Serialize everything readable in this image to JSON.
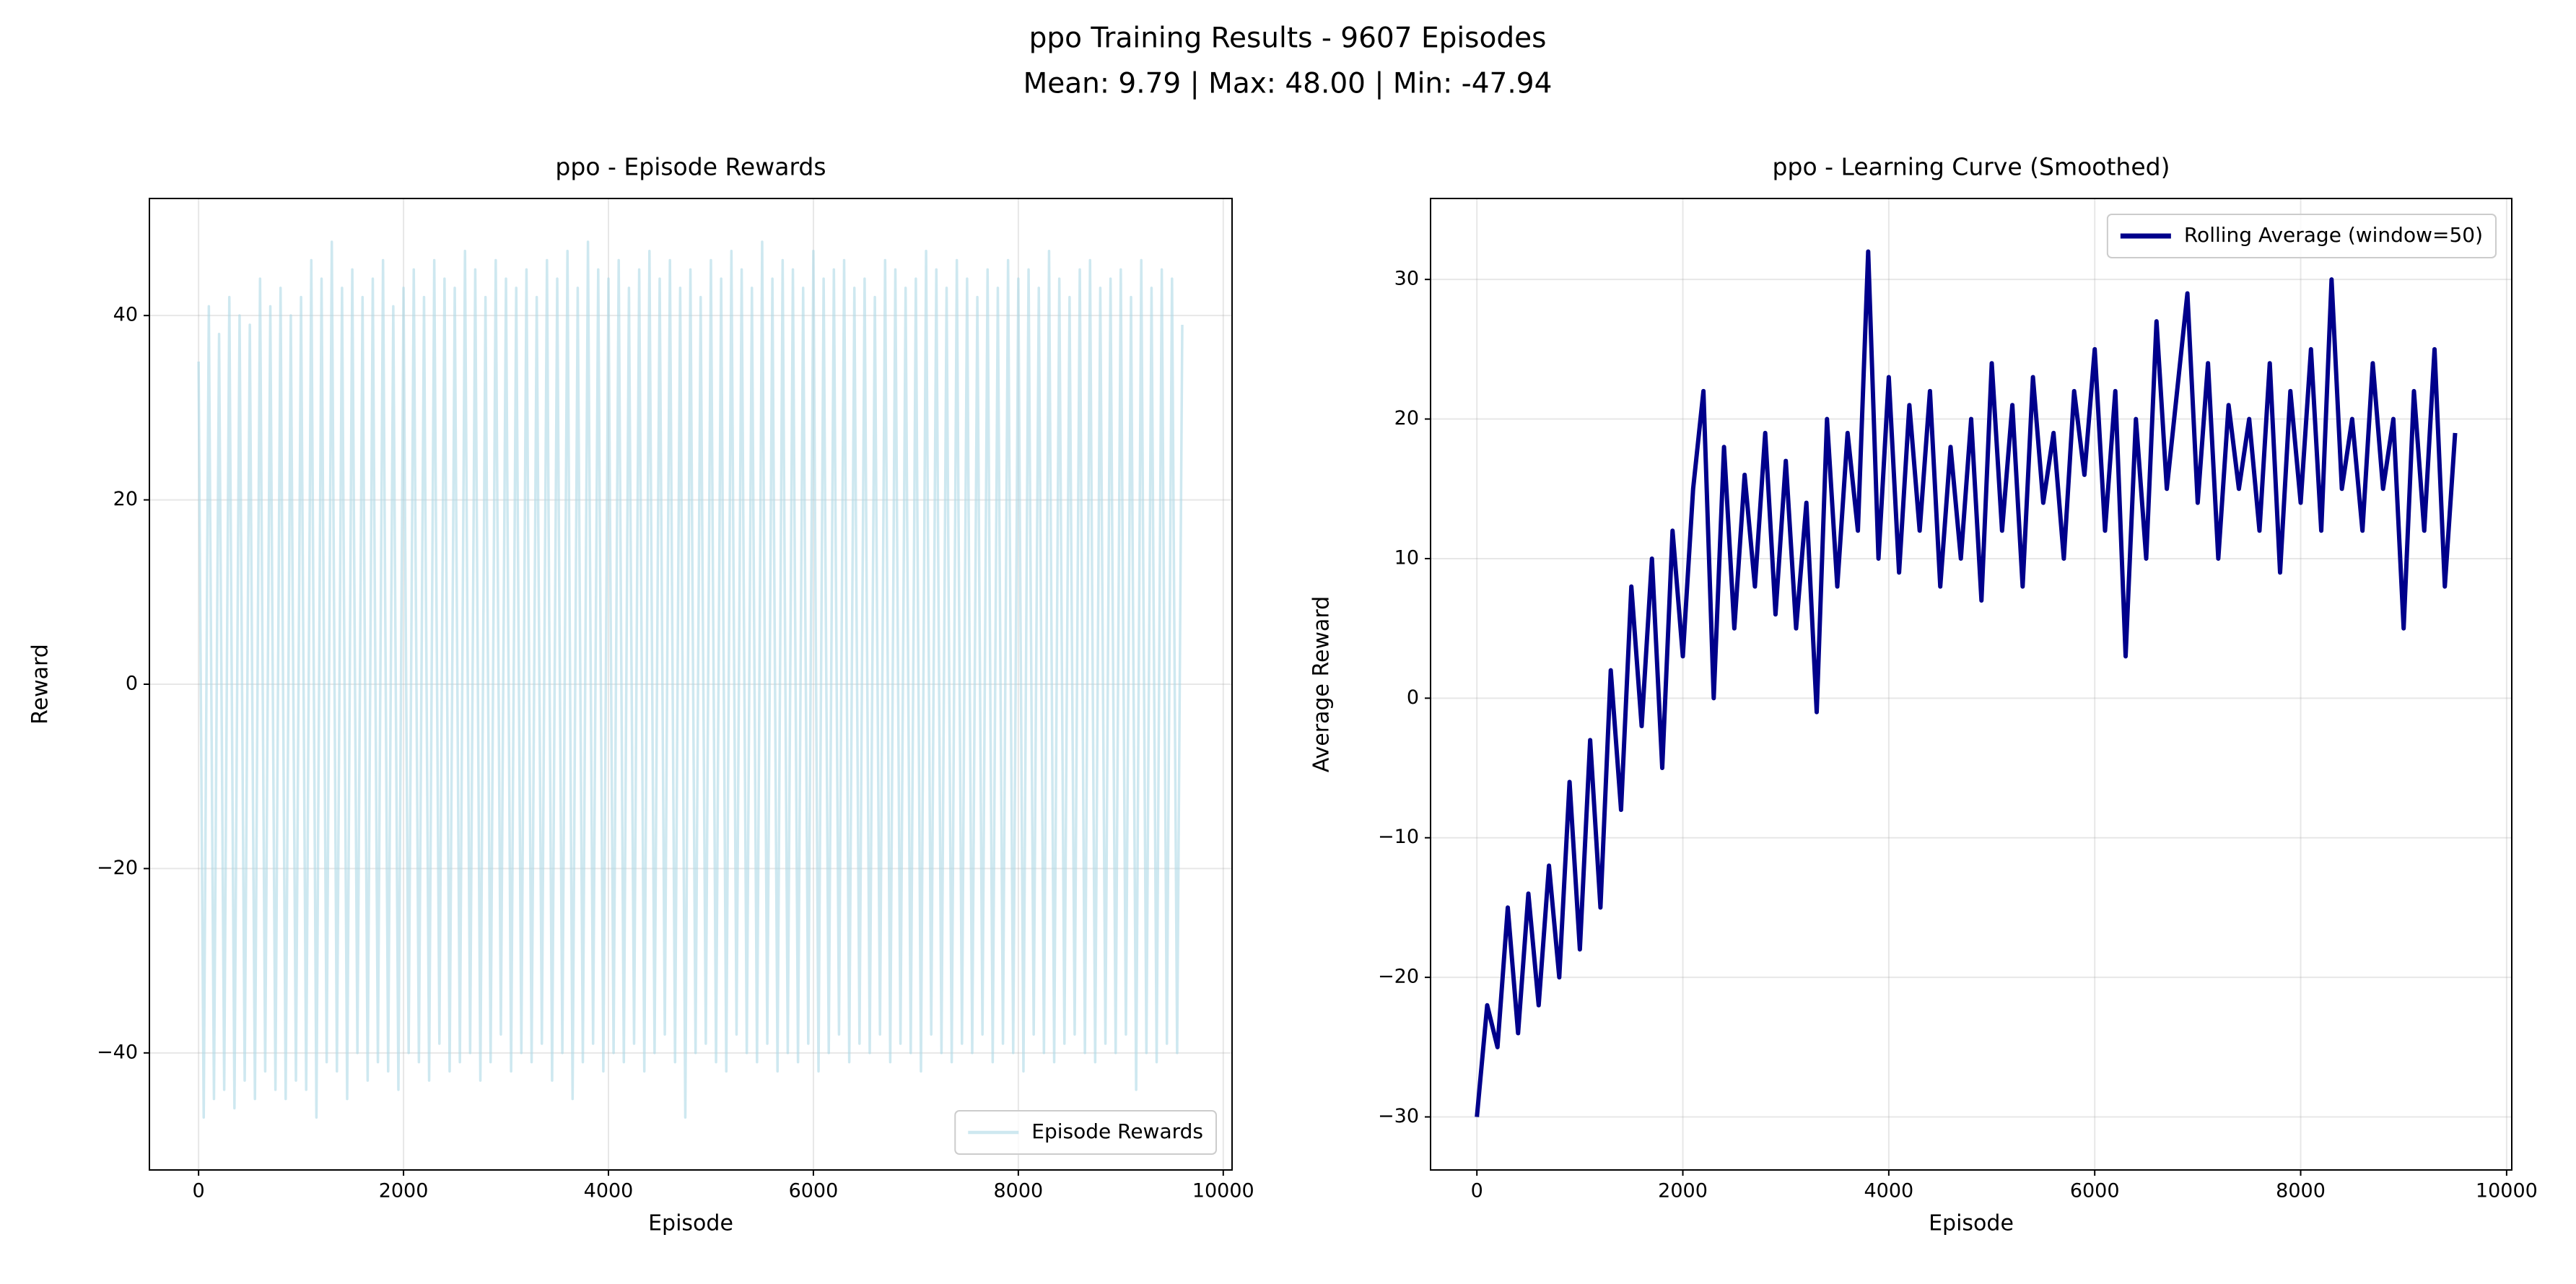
{
  "title": "ppo Training Results - 9607 Episodes",
  "subtitle": "Mean: 9.79 | Max: 48.00 | Min: -47.94",
  "chart_data": [
    {
      "type": "line",
      "title": "ppo - Episode Rewards",
      "xlabel": "Episode",
      "ylabel": "Reward",
      "x": [
        0,
        50,
        100,
        150,
        200,
        250,
        300,
        350,
        400,
        450,
        500,
        550,
        600,
        650,
        700,
        750,
        800,
        850,
        900,
        950,
        1000,
        1050,
        1100,
        1150,
        1200,
        1250,
        1300,
        1350,
        1400,
        1450,
        1500,
        1550,
        1600,
        1650,
        1700,
        1750,
        1800,
        1850,
        1900,
        1950,
        2000,
        2050,
        2100,
        2150,
        2200,
        2250,
        2300,
        2350,
        2400,
        2450,
        2500,
        2550,
        2600,
        2650,
        2700,
        2750,
        2800,
        2850,
        2900,
        2950,
        3000,
        3050,
        3100,
        3150,
        3200,
        3250,
        3300,
        3350,
        3400,
        3450,
        3500,
        3550,
        3600,
        3650,
        3700,
        3750,
        3800,
        3850,
        3900,
        3950,
        4000,
        4050,
        4100,
        4150,
        4200,
        4250,
        4300,
        4350,
        4400,
        4450,
        4500,
        4550,
        4600,
        4650,
        4700,
        4750,
        4800,
        4850,
        4900,
        4950,
        5000,
        5050,
        5100,
        5150,
        5200,
        5250,
        5300,
        5350,
        5400,
        5450,
        5500,
        5550,
        5600,
        5650,
        5700,
        5750,
        5800,
        5850,
        5900,
        5950,
        6000,
        6050,
        6100,
        6150,
        6200,
        6250,
        6300,
        6350,
        6400,
        6450,
        6500,
        6550,
        6600,
        6650,
        6700,
        6750,
        6800,
        6850,
        6900,
        6950,
        7000,
        7050,
        7100,
        7150,
        7200,
        7250,
        7300,
        7350,
        7400,
        7450,
        7500,
        7550,
        7600,
        7650,
        7700,
        7750,
        7800,
        7850,
        7900,
        7950,
        8000,
        8050,
        8100,
        8150,
        8200,
        8250,
        8300,
        8350,
        8400,
        8450,
        8500,
        8550,
        8600,
        8650,
        8700,
        8750,
        8800,
        8850,
        8900,
        8950,
        9000,
        9050,
        9100,
        9150,
        9200,
        9250,
        9300,
        9350,
        9400,
        9450,
        9500,
        9550,
        9600
      ],
      "series": [
        {
          "name": "Episode Rewards",
          "color": "#add8e6",
          "values": [
            35,
            -47,
            41,
            -45,
            38,
            -44,
            42,
            -46,
            40,
            -43,
            39,
            -45,
            44,
            -42,
            41,
            -44,
            43,
            -45,
            40,
            -43,
            42,
            -44,
            46,
            -47,
            44,
            -41,
            48,
            -42,
            43,
            -45,
            45,
            -40,
            42,
            -43,
            44,
            -41,
            46,
            -42,
            41,
            -44,
            43,
            -40,
            45,
            -41,
            42,
            -43,
            46,
            -39,
            44,
            -42,
            43,
            -41,
            47,
            -40,
            45,
            -43,
            42,
            -41,
            46,
            -38,
            44,
            -42,
            43,
            -40,
            45,
            -41,
            42,
            -39,
            46,
            -43,
            44,
            -40,
            47,
            -45,
            43,
            -41,
            48,
            -39,
            45,
            -42,
            44,
            -40,
            46,
            -41,
            43,
            -39,
            45,
            -42,
            47,
            -40,
            44,
            -38,
            46,
            -41,
            43,
            -47,
            45,
            -40,
            42,
            -39,
            46,
            -41,
            44,
            -42,
            47,
            -38,
            45,
            -40,
            43,
            -41,
            48,
            -39,
            44,
            -42,
            46,
            -40,
            45,
            -41,
            43,
            -39,
            47,
            -42,
            44,
            -40,
            45,
            -38,
            46,
            -41,
            43,
            -39,
            44,
            -40,
            42,
            -38,
            46,
            -41,
            45,
            -39,
            43,
            -40,
            44,
            -42,
            47,
            -38,
            45,
            -40,
            43,
            -41,
            46,
            -39,
            44,
            -40,
            42,
            -38,
            45,
            -41,
            43,
            -39,
            46,
            -40,
            44,
            -42,
            45,
            -38,
            43,
            -40,
            47,
            -41,
            44,
            -39,
            42,
            -38,
            45,
            -40,
            46,
            -41,
            43,
            -39,
            44,
            -40,
            45,
            -38,
            42,
            -44,
            46,
            -40,
            43,
            -41,
            45,
            -39,
            44,
            -40,
            39
          ]
        }
      ],
      "xlim": [
        -480,
        10086
      ],
      "ylim": [
        -52.7,
        52.7
      ],
      "xticks": [
        0,
        2000,
        4000,
        6000,
        8000,
        10000
      ],
      "yticks": [
        {
          "value": -40,
          "label": "−40"
        },
        {
          "value": -20,
          "label": "−20"
        },
        0,
        20,
        40
      ],
      "grid": true,
      "legend": "lower right"
    },
    {
      "type": "line",
      "title": "ppo - Learning Curve (Smoothed)",
      "xlabel": "Episode",
      "ylabel": "Average Reward",
      "x": [
        0,
        100,
        200,
        300,
        400,
        500,
        600,
        700,
        800,
        900,
        1000,
        1100,
        1200,
        1300,
        1400,
        1500,
        1600,
        1700,
        1800,
        1900,
        2000,
        2100,
        2200,
        2300,
        2400,
        2500,
        2600,
        2700,
        2800,
        2900,
        3000,
        3100,
        3200,
        3300,
        3400,
        3500,
        3600,
        3700,
        3800,
        3900,
        4000,
        4100,
        4200,
        4300,
        4400,
        4500,
        4600,
        4700,
        4800,
        4900,
        5000,
        5100,
        5200,
        5300,
        5400,
        5500,
        5600,
        5700,
        5800,
        5900,
        6000,
        6100,
        6200,
        6300,
        6400,
        6500,
        6600,
        6700,
        6800,
        6900,
        7000,
        7100,
        7200,
        7300,
        7400,
        7500,
        7600,
        7700,
        7800,
        7900,
        8000,
        8100,
        8200,
        8300,
        8400,
        8500,
        8600,
        8700,
        8800,
        8900,
        9000,
        9100,
        9200,
        9300,
        9400,
        9500
      ],
      "series": [
        {
          "name": "Rolling Average (window=50)",
          "color": "#00008b",
          "values": [
            -30,
            -22,
            -25,
            -15,
            -24,
            -14,
            -22,
            -12,
            -20,
            -6,
            -18,
            -3,
            -15,
            2,
            -8,
            8,
            -2,
            10,
            -5,
            12,
            3,
            15,
            22,
            0,
            18,
            5,
            16,
            8,
            19,
            6,
            17,
            5,
            14,
            -1,
            20,
            8,
            19,
            12,
            32,
            10,
            23,
            9,
            21,
            12,
            22,
            8,
            18,
            10,
            20,
            7,
            24,
            12,
            21,
            8,
            23,
            14,
            19,
            10,
            22,
            16,
            25,
            12,
            22,
            3,
            20,
            10,
            27,
            15,
            22,
            29,
            14,
            24,
            10,
            21,
            15,
            20,
            12,
            24,
            9,
            22,
            14,
            25,
            12,
            30,
            15,
            20,
            12,
            24,
            15,
            20,
            5,
            22,
            12,
            25,
            8,
            19
          ]
        }
      ],
      "xlim": [
        -450,
        10050
      ],
      "ylim": [
        -33.8,
        35.8
      ],
      "xticks": [
        0,
        2000,
        4000,
        6000,
        8000,
        10000
      ],
      "yticks": [
        {
          "value": -30,
          "label": "−30"
        },
        {
          "value": -20,
          "label": "−20"
        },
        {
          "value": -10,
          "label": "−10"
        },
        0,
        10,
        20,
        30
      ],
      "grid": true,
      "legend": "upper right"
    }
  ]
}
